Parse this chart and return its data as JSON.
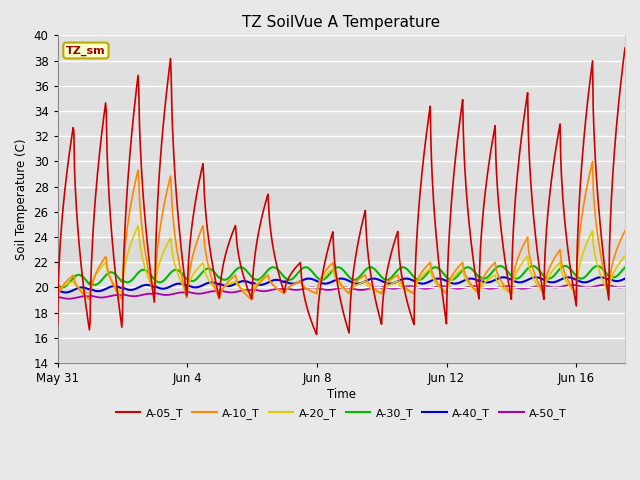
{
  "title": "TZ SoilVue A Temperature",
  "ylabel": "Soil Temperature (C)",
  "xlabel": "Time",
  "ylim": [
    14,
    40
  ],
  "yticks": [
    14,
    16,
    18,
    20,
    22,
    24,
    26,
    28,
    30,
    32,
    34,
    36,
    38,
    40
  ],
  "xtick_positions": [
    0,
    4,
    8,
    12,
    16
  ],
  "xtick_labels": [
    "May 31",
    "Jun 4",
    "Jun 8",
    "Jun 12",
    "Jun 16"
  ],
  "legend_labels": [
    "A-05_T",
    "A-10_T",
    "A-20_T",
    "A-30_T",
    "A-40_T",
    "A-50_T"
  ],
  "legend_colors": [
    "#cc0000",
    "#ff8800",
    "#ddcc00",
    "#00bb00",
    "#0000cc",
    "#aa00aa"
  ],
  "fig_bg": "#e8e8e8",
  "plot_bg": "#e0e0e0",
  "grid_color": "#ffffff",
  "annotation_label": "TZ_sm",
  "annotation_color": "#990000",
  "annotation_bg": "#ffffcc",
  "annotation_border": "#bbaa00",
  "n_days": 17.5,
  "pts_per_day": 48,
  "a05_peaks": [
    33,
    17,
    34.5,
    16.5,
    35.5,
    37.2,
    18.5,
    38.5,
    30,
    19,
    25,
    19,
    24.5,
    27.5,
    25,
    22,
    24.5,
    16.2,
    34.8,
    16.5,
    26.2,
    16.3,
    24.5,
    34.5,
    34.7,
    17,
    35,
    18,
    32.9,
    19,
    35.5,
    33.0,
    19,
    38,
    39,
    22.5
  ],
  "a10_peaks": [
    21,
    19,
    22.5,
    19,
    22,
    29.5,
    19,
    29,
    25,
    19,
    21,
    19,
    21,
    21,
    21,
    20,
    20.5,
    19.5,
    22,
    19.5,
    21,
    19.5,
    21,
    22,
    22,
    19.5,
    22,
    19.5,
    22,
    19.5,
    24,
    23,
    19.5,
    30,
    24.5,
    22
  ],
  "a20_peaks": [
    20.5,
    19.5,
    22,
    19.5,
    23,
    25,
    19.5,
    24,
    22,
    19.5,
    20.5,
    19.5,
    20.5,
    21,
    21,
    20,
    20.5,
    19.5,
    21.5,
    19.5,
    20.5,
    19.5,
    20.5,
    21.5,
    21.5,
    19.5,
    21.5,
    19.5,
    21,
    19.5,
    22.5,
    22,
    19.5,
    24.5,
    22.5,
    21
  ],
  "a30_base": [
    20.5,
    20.7,
    20.9,
    20.9,
    21.0,
    21.1,
    21.1,
    21.1,
    21.1,
    21.1,
    21.1,
    21.1,
    21.1,
    21.2,
    21.2,
    21.2,
    21.2,
    21.3,
    21.3,
    21.3,
    21.3,
    21.4,
    21.4,
    21.4,
    21.4,
    21.4,
    21.4,
    21.4,
    21.3,
    21.3,
    21.3,
    21.4,
    21.5,
    21.6,
    21.7,
    21.8
  ],
  "a40_base": [
    19.8,
    19.9,
    20.0,
    20.1,
    20.2,
    20.3,
    20.4,
    20.5,
    20.5,
    20.5,
    20.5,
    20.5,
    20.5,
    20.6,
    20.6,
    20.6,
    20.6,
    20.7,
    20.7,
    20.7,
    20.7,
    20.7,
    20.7,
    20.7,
    20.7,
    20.7,
    20.7,
    20.8,
    20.8,
    20.8,
    20.9,
    21.0,
    21.1,
    21.2,
    21.3,
    21.4
  ],
  "a50_base": [
    19.2,
    19.3,
    19.4,
    19.5,
    19.6,
    19.7,
    19.8,
    19.9,
    19.9,
    19.9,
    20.0,
    20.0,
    20.0,
    20.0,
    20.0,
    20.1,
    20.1,
    20.1,
    20.1,
    20.2,
    20.2,
    20.2,
    20.2,
    20.3,
    20.3,
    20.3,
    20.3,
    20.4,
    20.4,
    20.4,
    20.4,
    20.5,
    20.5,
    20.6,
    20.7,
    20.8
  ]
}
